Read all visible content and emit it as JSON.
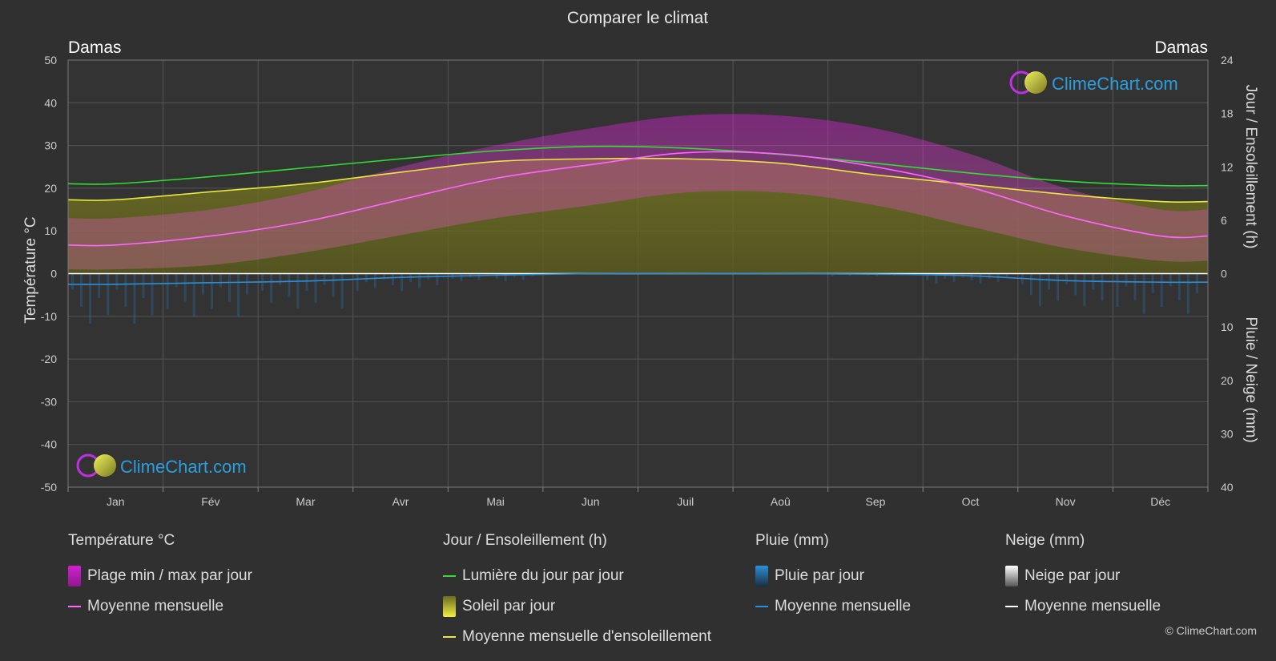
{
  "title": "Comparer le climat",
  "location_left": "Damas",
  "location_right": "Damas",
  "brand": "ClimeChart.com",
  "copyright": "© ClimeChart.com",
  "colors": {
    "background": "#303030",
    "temp_range": "#d020d0",
    "temp_mean": "#ff66ff",
    "daylight": "#33dd33",
    "sunshine_fill": "#8a8a20",
    "sunshine_mean": "#e8e840",
    "rain": "#2a8fd8",
    "rain_mean": "#2a8fd8",
    "snow_mean": "#ffffff",
    "brand": "#2a9fe0"
  },
  "chart_data": {
    "type": "area",
    "months": [
      "Jan",
      "Fév",
      "Mar",
      "Avr",
      "Mai",
      "Jun",
      "Juil",
      "Aoû",
      "Sep",
      "Oct",
      "Nov",
      "Déc"
    ],
    "y_left": {
      "label": "Température °C",
      "range": [
        -50,
        50
      ],
      "ticks": [
        50,
        40,
        30,
        20,
        10,
        0,
        -10,
        -20,
        -30,
        -40,
        -50
      ]
    },
    "y_right_top": {
      "label": "Jour / Ensoleillement (h)",
      "range": [
        0,
        24
      ],
      "ticks": [
        24,
        18,
        12,
        6,
        0
      ]
    },
    "y_right_bottom": {
      "label": "Pluie / Neige (mm)",
      "range": [
        0,
        40
      ],
      "ticks": [
        10,
        20,
        30,
        40
      ]
    },
    "series": [
      {
        "name": "Moyenne mensuelle",
        "group": "temperature",
        "unit": "°C",
        "values": [
          6.7,
          8.8,
          12.2,
          17.3,
          22.3,
          25.5,
          28.3,
          28.0,
          25.0,
          20.2,
          13.5,
          8.8
        ]
      },
      {
        "name": "Plage max par jour",
        "group": "temperature",
        "unit": "°C",
        "values": [
          13,
          15,
          19,
          25,
          30,
          34,
          37,
          37,
          34,
          28,
          20,
          15
        ]
      },
      {
        "name": "Plage min par jour",
        "group": "temperature",
        "unit": "°C",
        "values": [
          1,
          2,
          5,
          9,
          13,
          16,
          19,
          19,
          16,
          11,
          6,
          3
        ]
      },
      {
        "name": "Lumière du jour par jour",
        "group": "sun",
        "unit": "h",
        "values": [
          10.1,
          10.9,
          11.9,
          12.9,
          13.8,
          14.3,
          14.1,
          13.4,
          12.4,
          11.3,
          10.4,
          9.9
        ]
      },
      {
        "name": "Moyenne mensuelle d'ensoleillement",
        "group": "sun",
        "unit": "h",
        "values": [
          8.3,
          9.2,
          10.1,
          11.4,
          12.6,
          12.9,
          12.9,
          12.4,
          11.1,
          10.0,
          8.9,
          8.1
        ]
      },
      {
        "name": "Moyenne mensuelle",
        "group": "rain",
        "unit": "mm",
        "values": [
          2.0,
          1.7,
          1.4,
          0.7,
          0.3,
          0.0,
          0.0,
          0.0,
          0.1,
          0.4,
          1.3,
          1.6
        ]
      },
      {
        "name": "Moyenne mensuelle",
        "group": "snow",
        "unit": "mm",
        "values": [
          0,
          0,
          0,
          0,
          0,
          0,
          0,
          0,
          0,
          0,
          0,
          0
        ]
      }
    ]
  },
  "legend": {
    "temperature": {
      "title": "Température °C",
      "items": [
        "Plage min / max par jour",
        "Moyenne mensuelle"
      ]
    },
    "sun": {
      "title": "Jour / Ensoleillement (h)",
      "items": [
        "Lumière du jour par jour",
        "Soleil par jour",
        "Moyenne mensuelle d'ensoleillement"
      ]
    },
    "rain": {
      "title": "Pluie (mm)",
      "items": [
        "Pluie par jour",
        "Moyenne mensuelle"
      ]
    },
    "snow": {
      "title": "Neige (mm)",
      "items": [
        "Neige par jour",
        "Moyenne mensuelle"
      ]
    }
  }
}
